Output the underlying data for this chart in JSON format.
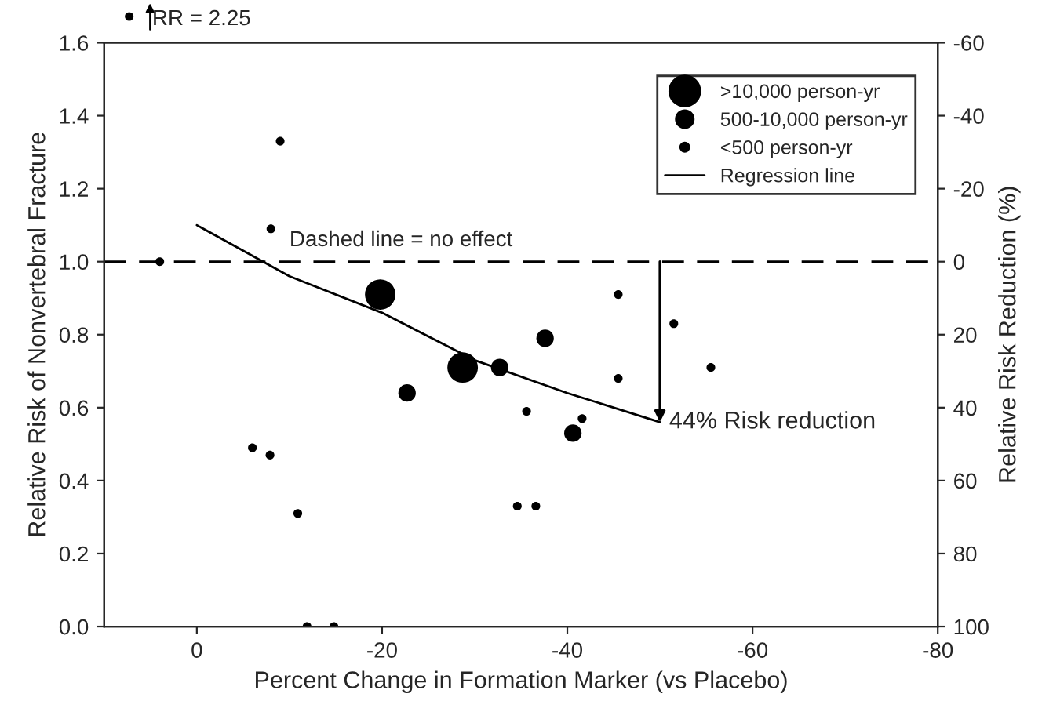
{
  "chart_data": {
    "type": "scatter",
    "xlabel": "Percent Change in Formation Marker (vs Placebo)",
    "ylabel": "Relative Risk of Nonvertebral Fracture",
    "y2label": "Relative Risk Reduction (%)",
    "xlim": [
      10,
      -80
    ],
    "xticks": [
      0,
      -20,
      -40,
      -60,
      -80
    ],
    "ylim": [
      0,
      1.6
    ],
    "yticks": [
      {
        "value": 0,
        "label": "0.0"
      },
      {
        "value": 0.2,
        "label": "0.2"
      },
      {
        "value": 0.4,
        "label": "0.4"
      },
      {
        "value": 0.6,
        "label": "0.6"
      },
      {
        "value": 0.8,
        "label": "0.8"
      },
      {
        "value": 1.0,
        "label": "1.0"
      },
      {
        "value": 1.2,
        "label": "1.2"
      },
      {
        "value": 1.4,
        "label": "1.4"
      },
      {
        "value": 1.6,
        "label": "1.6"
      }
    ],
    "y2lim": [
      100,
      -60
    ],
    "y2ticks": [
      100,
      80,
      60,
      40,
      20,
      0,
      -20,
      -40,
      -60
    ],
    "legend": "top right",
    "grid": false,
    "series": [
      {
        "name": ">10,000 person-yr",
        "color": "#000000",
        "x": [
          -19.8,
          -28.7
        ],
        "values": [
          0.91,
          0.71
        ]
      },
      {
        "name": "500-10,000 person-yr",
        "color": "#000000",
        "x": [
          -37.6,
          -32.7,
          -22.7,
          -40.6
        ],
        "values": [
          0.79,
          0.71,
          0.64,
          0.53
        ]
      },
      {
        "name": "<500 person-yr",
        "color": "#000000",
        "x": [
          4,
          -8,
          -9,
          -45.5,
          -51.5,
          -35.6,
          -6,
          -7.9,
          -10.9,
          -34.6,
          -36.6,
          -11.9,
          -14.8,
          -41.6,
          -45.5,
          -55.5
        ],
        "values": [
          1.0,
          1.09,
          1.33,
          0.91,
          0.83,
          0.59,
          0.49,
          0.47,
          0.31,
          0.33,
          0.33,
          0.0,
          0.0,
          0.57,
          0.68,
          0.71
        ]
      },
      {
        "name": "Regression line",
        "type": "line",
        "color": "#000000",
        "x": [
          0,
          -10,
          -20,
          -30,
          -40,
          -50
        ],
        "values": [
          1.1,
          0.96,
          0.86,
          0.73,
          0.64,
          0.56
        ]
      }
    ],
    "ref_lines": [
      {
        "axis": "y",
        "value": 1.0,
        "label": "Dashed line = no effect",
        "line_style": "dashed",
        "color": "#000000"
      }
    ],
    "annotations": [
      {
        "text": "44% Risk reduction",
        "x": -50,
        "y": 0.56
      },
      "RR = 2.25"
    ]
  }
}
